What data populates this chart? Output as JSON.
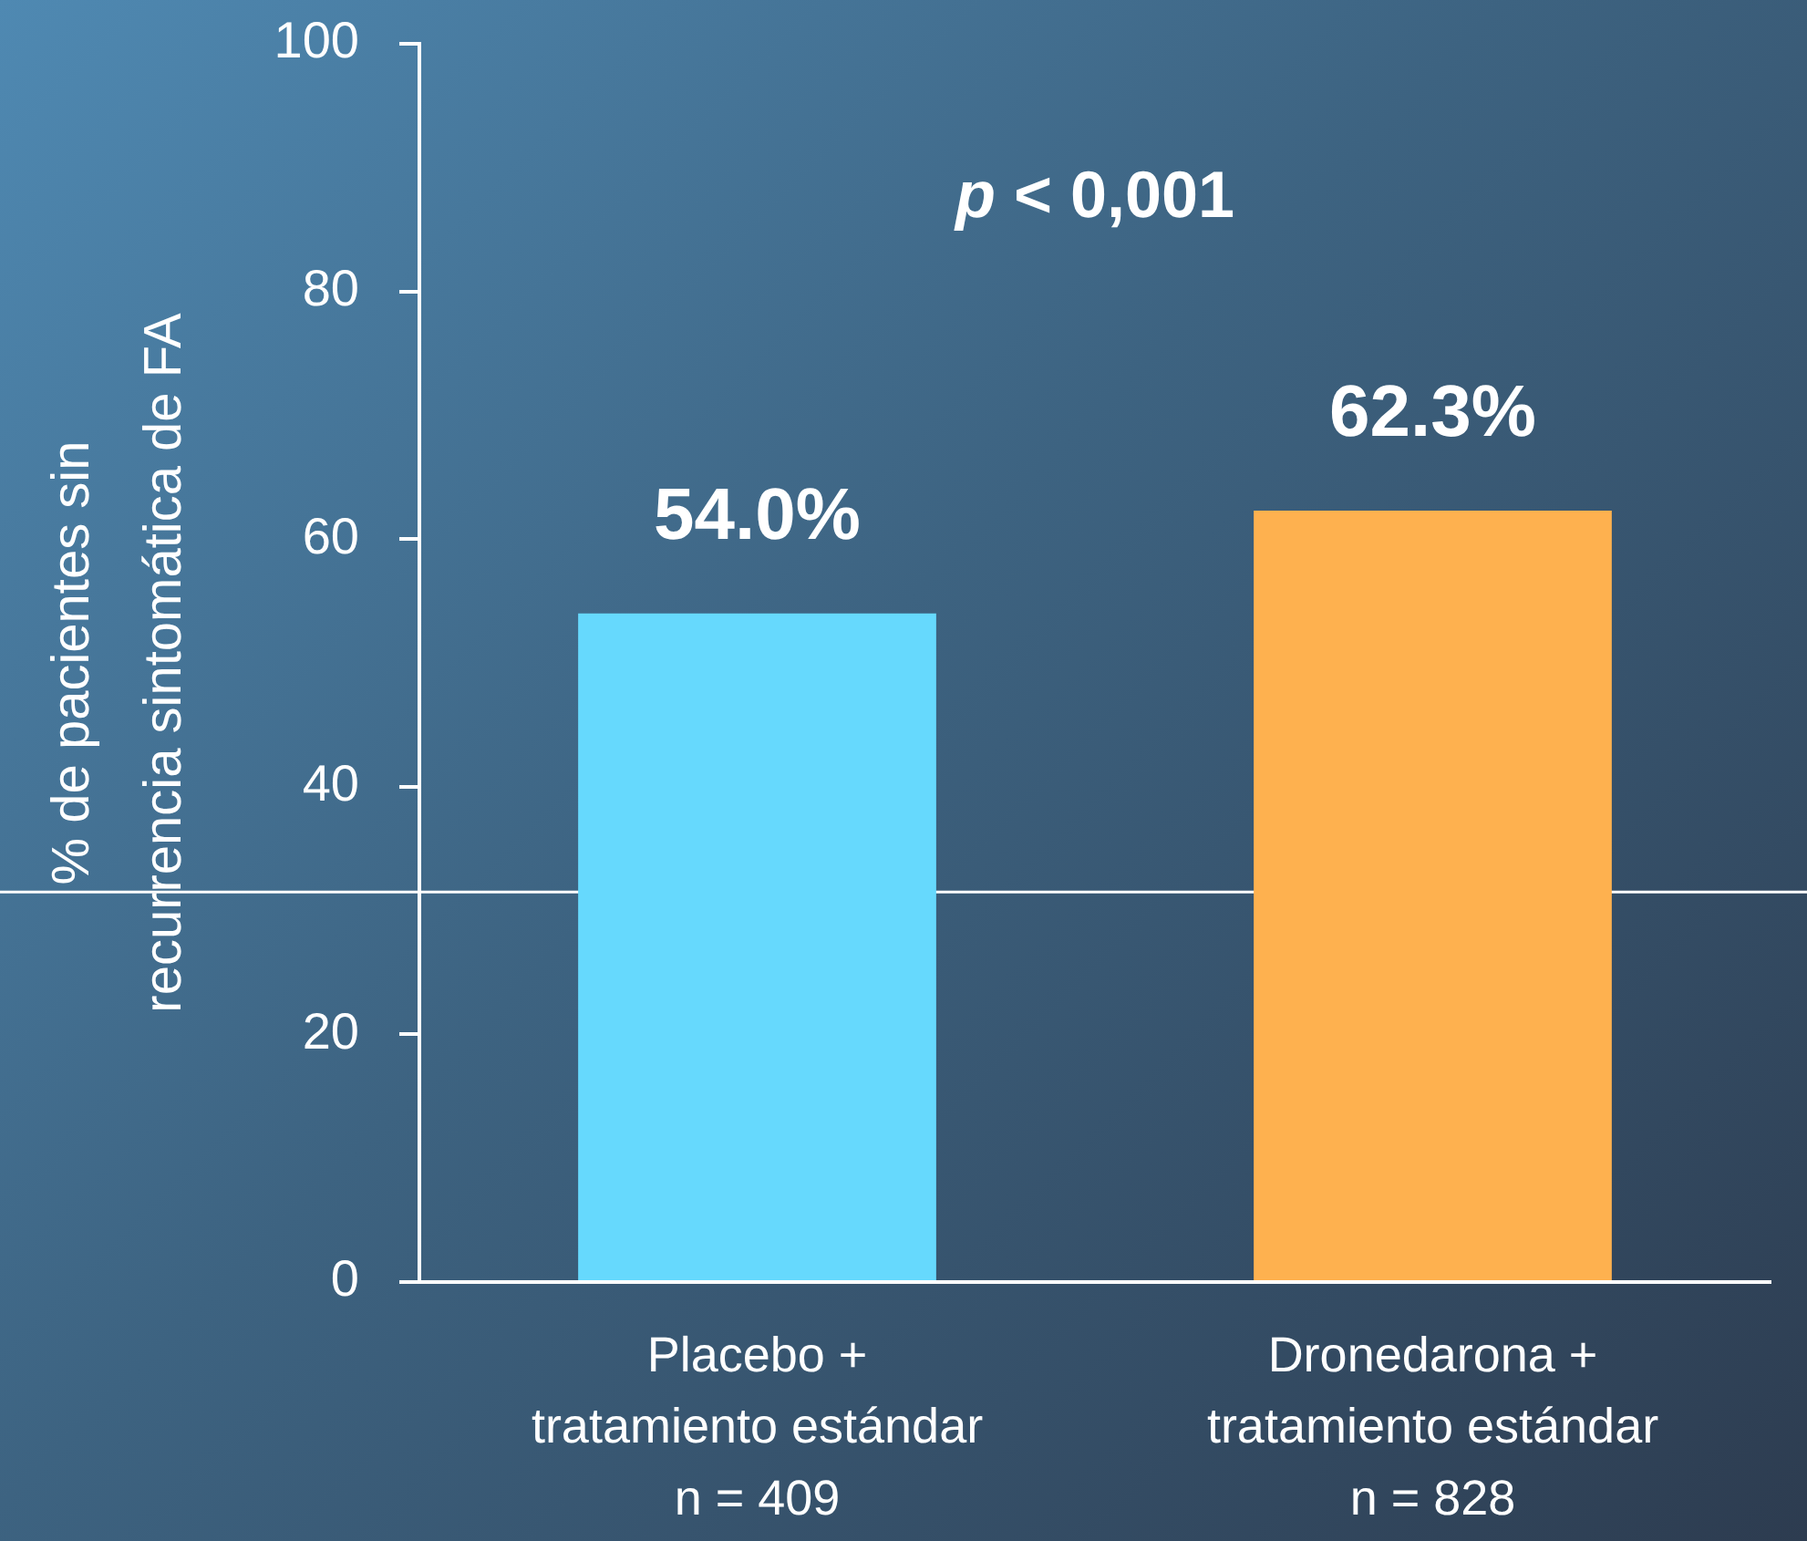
{
  "chart_data": {
    "type": "bar",
    "categories": [
      "Placebo +\ntratamiento estándar\nn = 409",
      "Dronedarona +\ntratamiento estándar\nn = 828"
    ],
    "values": [
      54.0,
      62.3
    ],
    "colors": [
      "#66d9fd",
      "#feb14f"
    ],
    "value_labels": [
      "54.0%",
      "62.3%"
    ],
    "ylabel": "% de pacientes sin\nrecurrencia sintomática de FA",
    "ylim": [
      0,
      100
    ],
    "yticks": [
      0,
      20,
      40,
      60,
      80,
      100
    ],
    "grid": false,
    "legend": false,
    "annotations": [
      "p < 0,001"
    ],
    "ref_lines": [
      {
        "axis": "y",
        "value": 31.5,
        "color": "#ffffff"
      }
    ]
  }
}
